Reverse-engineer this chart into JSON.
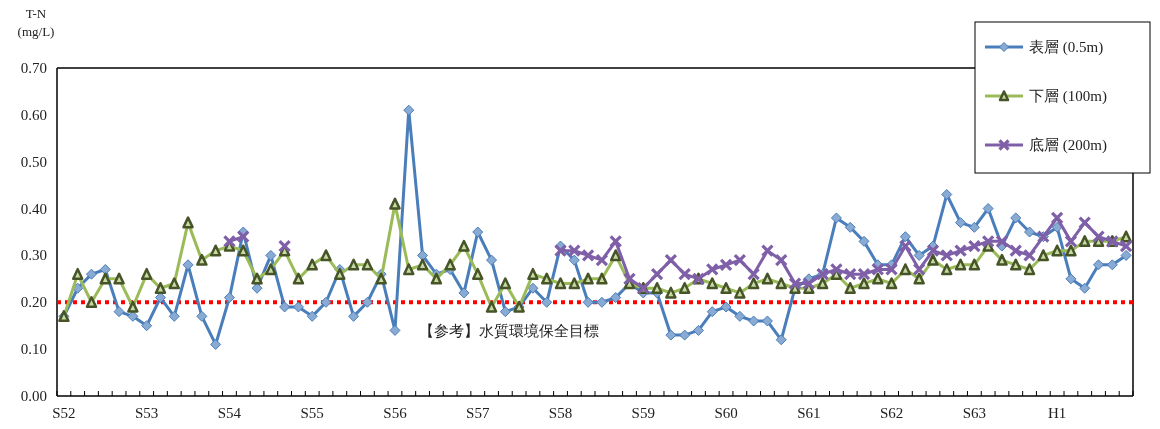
{
  "chart_data": {
    "type": "line",
    "ylabel": "T-N (mg/L)",
    "categories": [
      "S52",
      null,
      null,
      null,
      null,
      null,
      "S53",
      null,
      null,
      null,
      null,
      null,
      "S54",
      null,
      null,
      null,
      null,
      null,
      "S55",
      null,
      null,
      null,
      null,
      null,
      "S56",
      null,
      null,
      null,
      null,
      null,
      "S57",
      null,
      null,
      null,
      null,
      null,
      "S58",
      null,
      null,
      null,
      null,
      null,
      "S59",
      null,
      null,
      null,
      null,
      null,
      "S60",
      null,
      null,
      null,
      null,
      null,
      "S61",
      null,
      null,
      null,
      null,
      null,
      "S62",
      null,
      null,
      null,
      null,
      null,
      "S63",
      null,
      null,
      null,
      null,
      null,
      "H1",
      null,
      null,
      null,
      null,
      null
    ],
    "series": [
      {
        "name": "表層 (0.5m)",
        "color": "#4a7ebb",
        "marker": "diamond",
        "values": [
          0.17,
          0.23,
          0.26,
          0.27,
          0.18,
          0.17,
          0.15,
          0.21,
          0.17,
          0.28,
          0.17,
          0.11,
          0.21,
          0.35,
          0.23,
          0.3,
          0.19,
          0.19,
          0.17,
          0.2,
          0.27,
          0.17,
          0.2,
          0.26,
          0.14,
          0.61,
          0.3,
          0.26,
          0.27,
          0.22,
          0.35,
          0.29,
          0.18,
          0.19,
          0.23,
          0.2,
          0.32,
          0.29,
          0.2,
          0.2,
          0.21,
          0.24,
          0.22,
          0.22,
          0.13,
          0.13,
          0.14,
          0.18,
          0.19,
          0.17,
          0.16,
          0.16,
          0.12,
          0.23,
          0.25,
          0.26,
          0.38,
          0.36,
          0.33,
          0.28,
          0.28,
          0.34,
          0.3,
          0.32,
          0.43,
          0.37,
          0.36,
          0.4,
          0.32,
          0.38,
          0.35,
          0.34,
          0.36,
          0.25,
          0.23,
          0.28,
          0.28,
          0.3
        ]
      },
      {
        "name": "下層 (100m)",
        "color": "#9bbb59",
        "marker": "triangle",
        "values": [
          0.17,
          0.26,
          0.2,
          0.25,
          0.25,
          0.19,
          0.26,
          0.23,
          0.24,
          0.37,
          0.29,
          0.31,
          0.32,
          0.31,
          0.25,
          0.27,
          0.31,
          0.25,
          0.28,
          0.3,
          0.26,
          0.28,
          0.28,
          0.25,
          0.41,
          0.27,
          0.28,
          0.25,
          0.28,
          0.32,
          0.26,
          0.19,
          0.24,
          0.19,
          0.26,
          0.25,
          0.24,
          0.24,
          0.25,
          0.25,
          0.3,
          0.24,
          0.23,
          0.23,
          0.22,
          0.23,
          0.25,
          0.24,
          0.23,
          0.22,
          0.24,
          0.25,
          0.24,
          0.23,
          0.23,
          0.24,
          0.26,
          0.23,
          0.24,
          0.25,
          0.24,
          0.27,
          0.25,
          0.29,
          0.27,
          0.28,
          0.28,
          0.32,
          0.29,
          0.28,
          0.27,
          0.3,
          0.31,
          0.31,
          0.33,
          0.33,
          0.33,
          0.34
        ]
      },
      {
        "name": "底層 (200m)",
        "color": "#7f5fa8",
        "marker": "cross",
        "values": [
          null,
          null,
          null,
          null,
          null,
          null,
          null,
          null,
          null,
          null,
          null,
          null,
          0.33,
          0.34,
          null,
          null,
          0.32,
          null,
          null,
          null,
          null,
          null,
          null,
          null,
          null,
          null,
          null,
          null,
          null,
          null,
          null,
          null,
          null,
          null,
          null,
          null,
          0.31,
          0.31,
          0.3,
          0.29,
          0.33,
          0.25,
          0.23,
          0.26,
          0.29,
          0.26,
          0.25,
          0.27,
          0.28,
          0.29,
          0.26,
          0.31,
          0.29,
          0.24,
          0.24,
          0.26,
          0.27,
          0.26,
          0.26,
          0.27,
          0.27,
          0.32,
          0.27,
          0.31,
          0.3,
          0.31,
          0.32,
          0.33,
          0.33,
          0.31,
          0.3,
          0.34,
          0.38,
          0.33,
          0.37,
          0.34,
          0.33,
          0.32
        ]
      }
    ],
    "ylim": [
      0,
      0.7
    ],
    "yticks": [
      {
        "value": 0,
        "label": "0.00"
      },
      {
        "value": 0.1,
        "label": "0.10"
      },
      {
        "value": 0.2,
        "label": "0.20"
      },
      {
        "value": 0.3,
        "label": "0.30"
      },
      {
        "value": 0.4,
        "label": "0.40"
      },
      {
        "value": 0.5,
        "label": "0.50"
      },
      {
        "value": 0.6,
        "label": "0.60"
      },
      {
        "value": 0.7,
        "label": "0.70"
      }
    ],
    "ref_lines": [
      {
        "axis": "y",
        "value": 0.2,
        "label": "【参考】水質環境保全目標",
        "color": "#ff0000",
        "line_style": "dotted"
      }
    ],
    "legend": "top right"
  }
}
